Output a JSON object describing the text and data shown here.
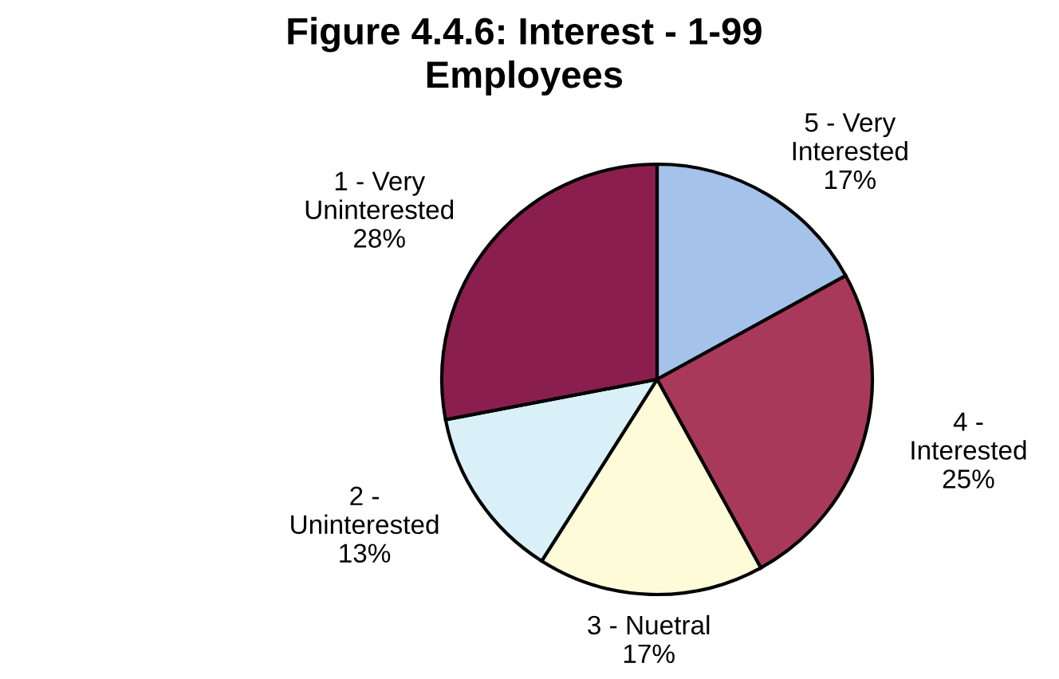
{
  "chart_data": {
    "type": "pie",
    "title": "Figure 4.4.6: Interest - 1-99\nEmployees",
    "categories": [
      "5 - Very\nInterested",
      "4 -\nInterested",
      "3 - Nuetral",
      "2 -\nUninterested",
      "1 - Very\nUninterested"
    ],
    "values": [
      17,
      25,
      17,
      13,
      28
    ],
    "value_labels": [
      "17%",
      "25%",
      "17%",
      "13%",
      "28%"
    ],
    "colors": [
      "#a4c2ea",
      "#a8395a",
      "#fdfbd8",
      "#d9f0f8",
      "#8a1f4f"
    ],
    "legend": false
  }
}
